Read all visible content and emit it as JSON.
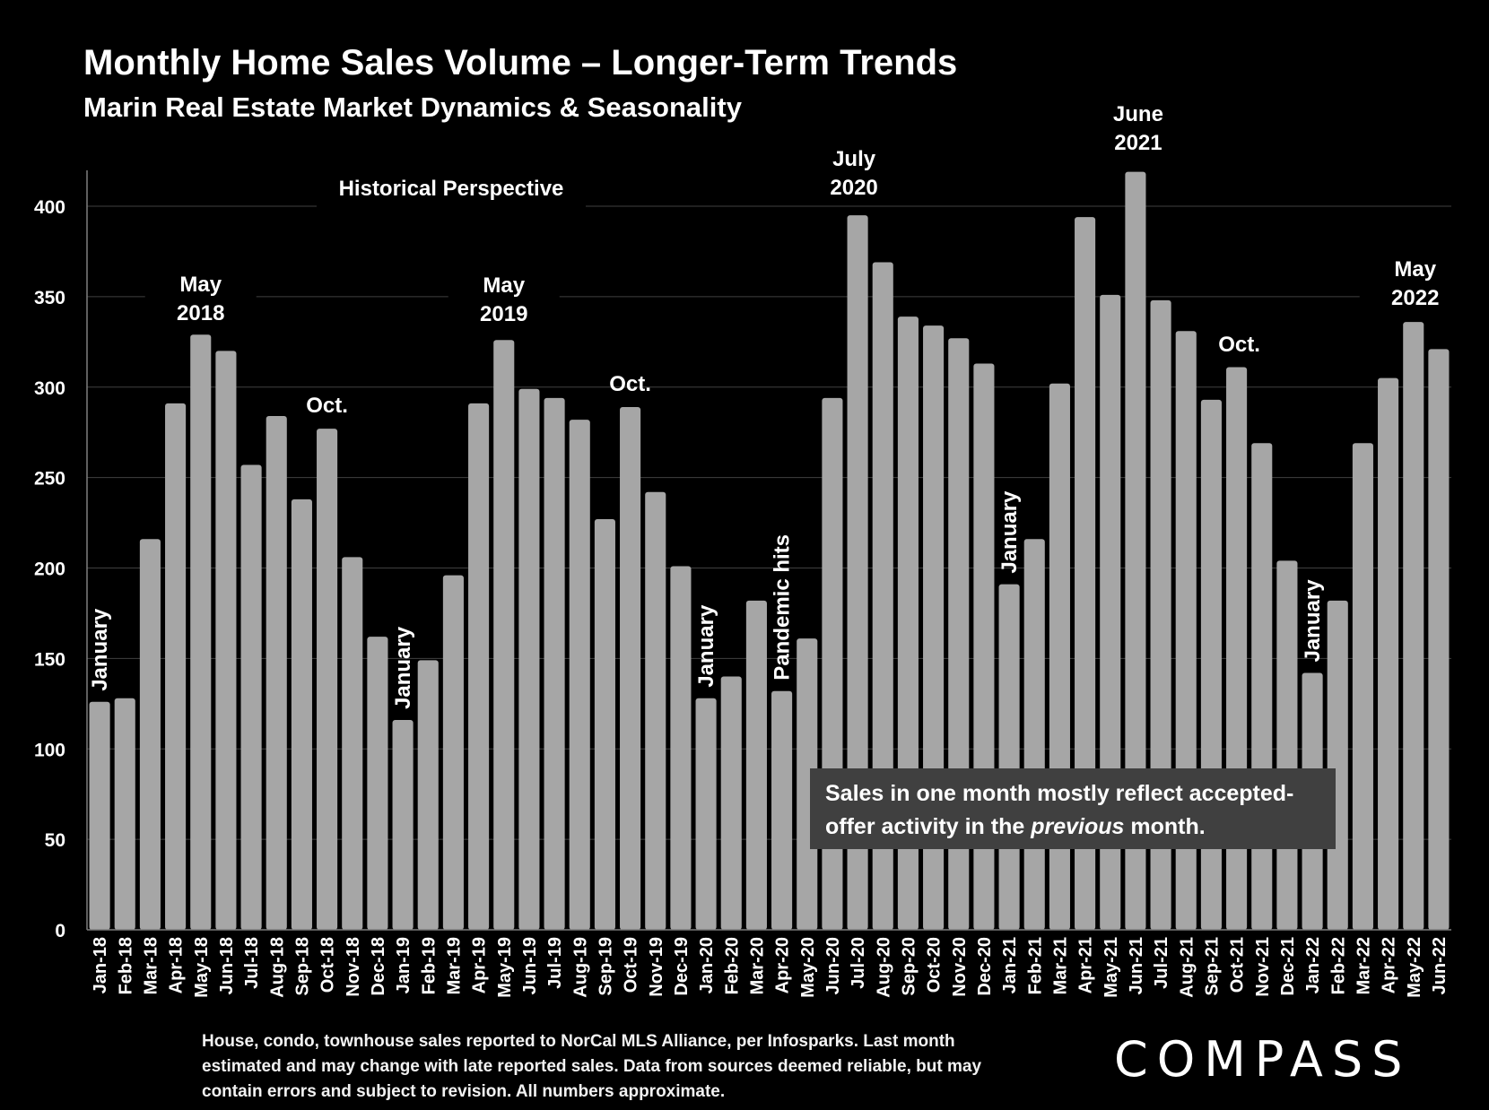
{
  "title": "Monthly Home Sales Volume – Longer-Term Trends",
  "subtitle": "Marin Real Estate Market Dynamics & Seasonality",
  "note": {
    "before": "Sales in one month mostly reflect accepted-offer activity in the ",
    "emphasis": "previous",
    "after": " month."
  },
  "footnote": "House, condo, townhouse sales reported to NorCal MLS Alliance, per Infosparks. Last month estimated and may change with late reported sales. Data from sources deemed reliable, but may contain errors and subject to revision. All numbers approximate.",
  "logo": "COMPASS",
  "colors": {
    "background": "#000000",
    "bar": "#a6a6a6",
    "grid": "#404040",
    "text": "#ffffff",
    "note_box": "#404040"
  },
  "chart_data": {
    "type": "bar",
    "title": "Monthly Home Sales Volume – Longer-Term Trends",
    "subtitle": "Marin Real Estate Market Dynamics & Seasonality",
    "xlabel": "",
    "ylabel": "",
    "ylim": [
      0,
      420
    ],
    "yticks": [
      0,
      50,
      100,
      150,
      200,
      250,
      300,
      350,
      400
    ],
    "grid": true,
    "categories": [
      "Jan-18",
      "Feb-18",
      "Mar-18",
      "Apr-18",
      "May-18",
      "Jun-18",
      "Jul-18",
      "Aug-18",
      "Sep-18",
      "Oct-18",
      "Nov-18",
      "Dec-18",
      "Jan-19",
      "Feb-19",
      "Mar-19",
      "Apr-19",
      "May-19",
      "Jun-19",
      "Jul-19",
      "Aug-19",
      "Sep-19",
      "Oct-19",
      "Nov-19",
      "Dec-19",
      "Jan-20",
      "Feb-20",
      "Mar-20",
      "Apr-20",
      "May-20",
      "Jun-20",
      "Jul-20",
      "Aug-20",
      "Sep-20",
      "Oct-20",
      "Nov-20",
      "Dec-20",
      "Jan-21",
      "Feb-21",
      "Mar-21",
      "Apr-21",
      "May-21",
      "Jun-21",
      "Jul-21",
      "Aug-21",
      "Sep-21",
      "Oct-21",
      "Nov-21",
      "Dec-21",
      "Jan-22",
      "Feb-22",
      "Mar-22",
      "Apr-22",
      "May-22",
      "Jun-22"
    ],
    "values": [
      126,
      128,
      216,
      291,
      329,
      320,
      257,
      284,
      238,
      277,
      206,
      162,
      116,
      149,
      196,
      291,
      326,
      299,
      294,
      282,
      227,
      289,
      242,
      201,
      128,
      140,
      182,
      132,
      161,
      294,
      395,
      369,
      339,
      334,
      327,
      313,
      191,
      216,
      302,
      394,
      351,
      419,
      348,
      331,
      293,
      311,
      269,
      204,
      142,
      182,
      269,
      305,
      336,
      321
    ],
    "annotations": [
      {
        "text": "Historical Perspective"
      },
      {
        "text": "May 2018",
        "lines": [
          "May",
          "2018"
        ]
      },
      {
        "text": "Oct."
      },
      {
        "text": "January"
      },
      {
        "text": "January"
      },
      {
        "text": "May 2019",
        "lines": [
          "May",
          "2019"
        ]
      },
      {
        "text": "Oct."
      },
      {
        "text": "January"
      },
      {
        "text": "Pandemic hits"
      },
      {
        "text": "July 2020",
        "lines": [
          "July",
          "2020"
        ]
      },
      {
        "text": "January"
      },
      {
        "text": "June 2021",
        "lines": [
          "June",
          "2021"
        ]
      },
      {
        "text": "Oct."
      },
      {
        "text": "January"
      },
      {
        "text": "May 2022",
        "lines": [
          "May",
          "2022"
        ]
      }
    ]
  }
}
